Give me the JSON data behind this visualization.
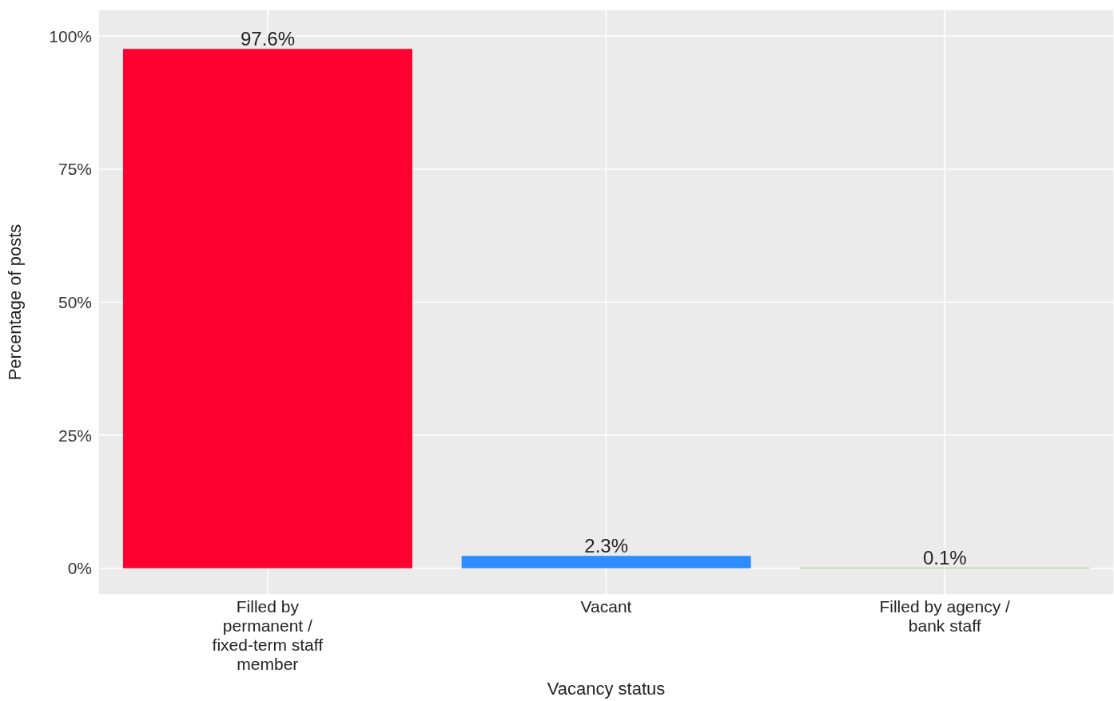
{
  "chart_data": {
    "type": "bar",
    "xlabel": "Vacancy status",
    "ylabel": "Percentage of posts",
    "categories": [
      "Filled by permanent / fixed-term staff member",
      "Vacant",
      "Filled by agency / bank staff"
    ],
    "values": [
      97.6,
      2.3,
      0.1
    ],
    "colors": [
      "#ff0030",
      "#2d8cff",
      "#6fbf40"
    ],
    "value_labels": [
      "97.6%",
      "2.3%",
      "0.1%"
    ],
    "ylim": [
      -5,
      105
    ],
    "yticks": [
      {
        "value": 0,
        "label": "0%"
      },
      {
        "value": 25,
        "label": "25%"
      },
      {
        "value": 50,
        "label": "50%"
      },
      {
        "value": 75,
        "label": "75%"
      },
      {
        "value": 100,
        "label": "100%"
      }
    ],
    "grid": true,
    "legend": false
  }
}
